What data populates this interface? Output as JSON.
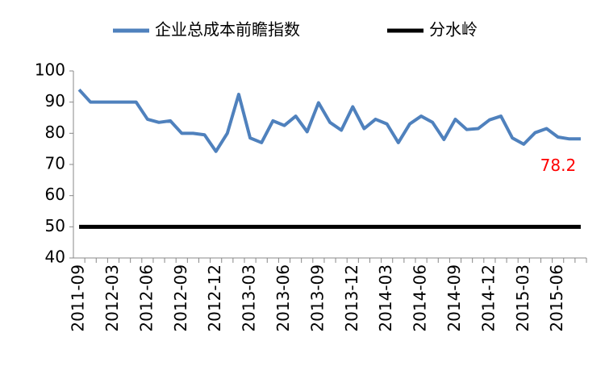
{
  "chart_data": {
    "type": "line",
    "categories": [
      "2011-09",
      null,
      null,
      "2012-03",
      null,
      null,
      "2012-06",
      null,
      null,
      "2012-09",
      null,
      null,
      "2012-12",
      null,
      null,
      "2013-03",
      null,
      null,
      "2013-06",
      null,
      null,
      "2013-09",
      null,
      null,
      "2013-12",
      null,
      null,
      "2014-03",
      null,
      null,
      "2014-06",
      null,
      null,
      "2014-09",
      null,
      null,
      "2014-12",
      null,
      null,
      "2015-03",
      null,
      null,
      "2015-06",
      null,
      null
    ],
    "series": [
      {
        "name": "企业总成本前瞻指数",
        "color": "#4f81bd",
        "values": [
          94,
          90,
          90,
          90,
          90,
          90,
          84.5,
          83.5,
          84,
          80,
          80,
          79.5,
          74.2,
          80,
          92.5,
          78.5,
          77,
          84,
          82.5,
          85.5,
          80.5,
          89.8,
          83.5,
          81,
          88.5,
          81.5,
          84.5,
          83,
          77,
          83,
          85.5,
          83.5,
          78,
          84.5,
          81.2,
          81.5,
          84.3,
          85.5,
          78.5,
          76.5,
          80.2,
          81.5,
          78.8,
          78.2,
          78.2
        ]
      },
      {
        "name": "分水岭",
        "color": "#000000",
        "values": [
          50,
          50,
          50,
          50,
          50,
          50,
          50,
          50,
          50,
          50,
          50,
          50,
          50,
          50,
          50,
          50,
          50,
          50,
          50,
          50,
          50,
          50,
          50,
          50,
          50,
          50,
          50,
          50,
          50,
          50,
          50,
          50,
          50,
          50,
          50,
          50,
          50,
          50,
          50,
          50,
          50,
          50,
          50,
          50,
          50
        ]
      }
    ],
    "annotation_color": "#ff0000",
    "ylim": [
      40,
      100
    ],
    "yticks": [
      40,
      50,
      60,
      70,
      80,
      90,
      100
    ],
    "grid": false,
    "legend": "top"
  }
}
